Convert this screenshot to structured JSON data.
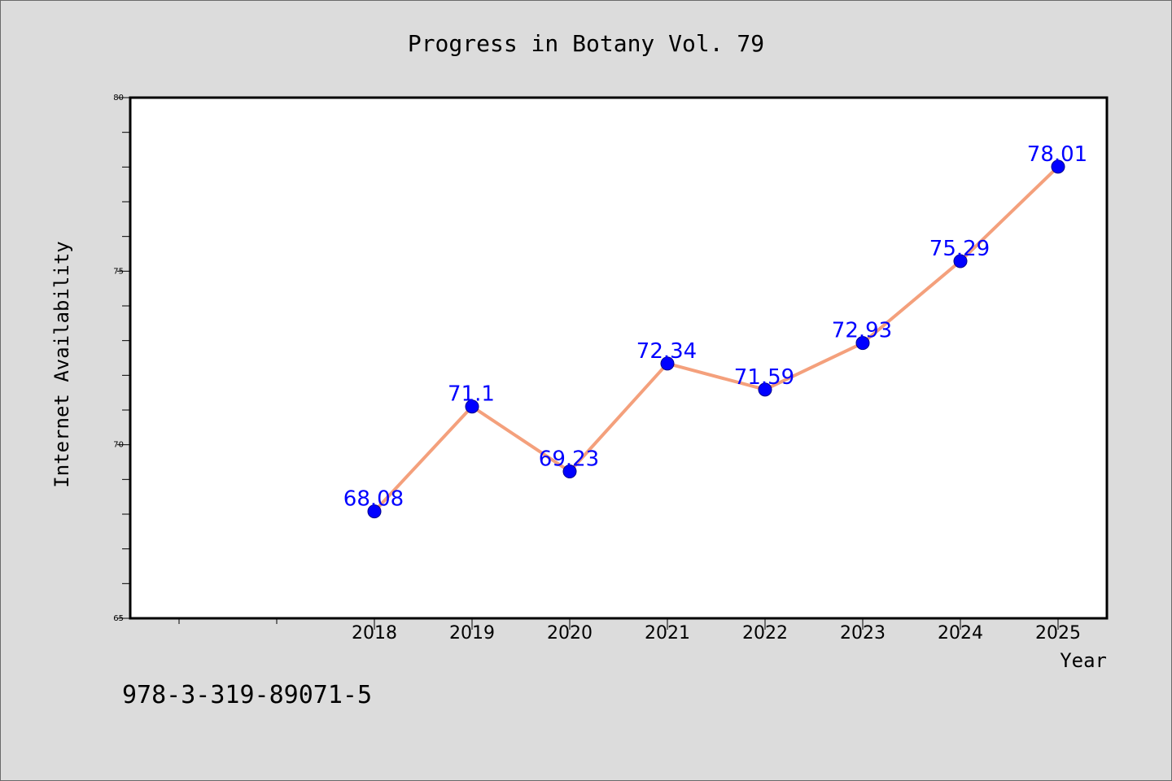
{
  "chart_data": {
    "type": "line",
    "title": "Progress in Botany Vol. 79",
    "xlabel": "Year",
    "ylabel": "Internet Availability",
    "x": [
      "2018",
      "2019",
      "2020",
      "2021",
      "2022",
      "2023",
      "2024",
      "2025"
    ],
    "series": [
      {
        "values": [
          68.08,
          71.1,
          69.23,
          72.34,
          71.59,
          72.93,
          75.29,
          78.01
        ],
        "data_labels": [
          "68.08",
          "71.1",
          "69.23",
          "72.34",
          "71.59",
          "72.93",
          "75.29",
          "78.01"
        ],
        "line_color": "#f4a07c",
        "marker_color": "#0000ff"
      }
    ],
    "ylim": [
      65,
      80
    ],
    "yticks": [
      "65",
      "70",
      "75",
      "80"
    ],
    "yminor_step": 1,
    "xlim": [
      2015.5,
      2025.5
    ],
    "grid": false,
    "legend": "none"
  },
  "footer": {
    "isbn": "978-3-319-89071-5"
  },
  "colors": {
    "background": "#dcdcdc",
    "plot_background": "#ffffff",
    "line": "#f4a07c",
    "marker": "#0000ff",
    "data_label": "#0000ff"
  }
}
